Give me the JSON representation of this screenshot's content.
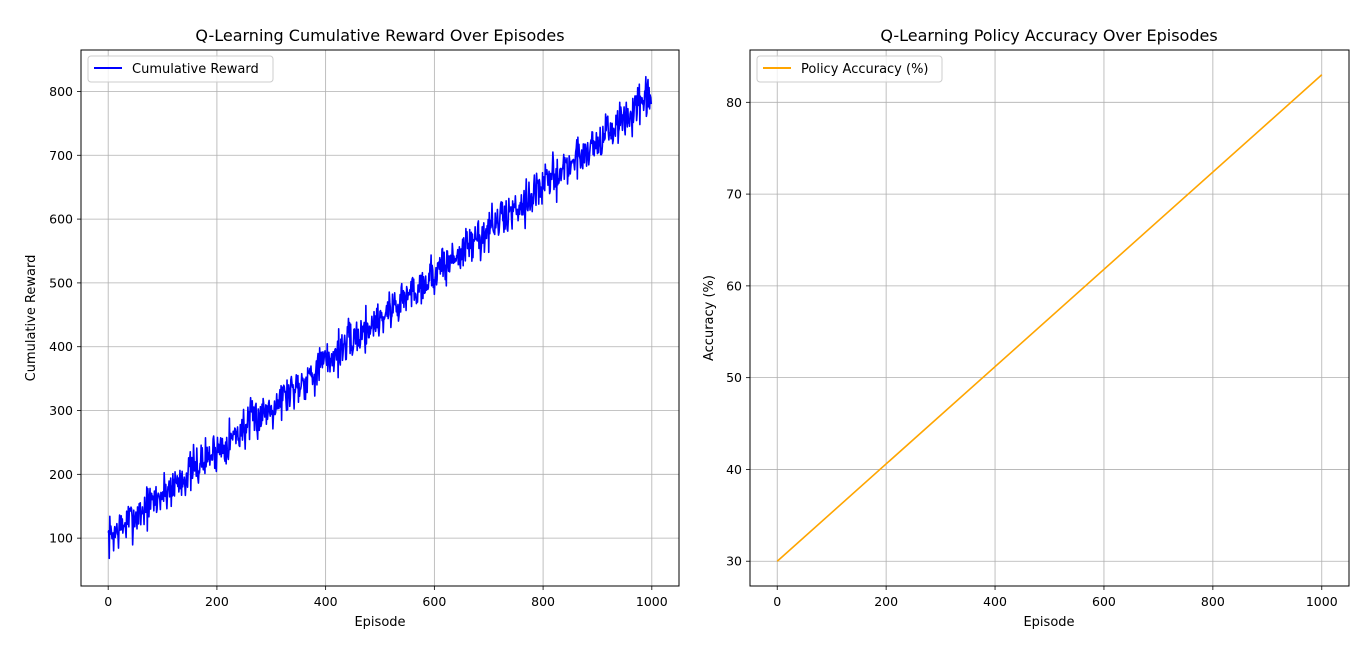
{
  "chart_data": [
    {
      "type": "line",
      "title": "Q-Learning Cumulative Reward Over Episodes",
      "xlabel": "Episode",
      "ylabel": "Cumulative Reward",
      "xlim": [
        -50,
        1050
      ],
      "ylim": [
        25,
        865
      ],
      "xticks": [
        0,
        200,
        400,
        600,
        800,
        1000
      ],
      "yticks": [
        100,
        200,
        300,
        400,
        500,
        600,
        700,
        800
      ],
      "grid": true,
      "legend": "upper-left",
      "series": [
        {
          "name": "Cumulative Reward",
          "color": "#0000ff",
          "x_start": 0,
          "x_step": 1,
          "noise_seed": 7,
          "points": 1000,
          "trend": {
            "start": 100,
            "end": 790
          },
          "noise_amplitude": 25,
          "note_values": "noisy series rising approximately linearly from about 100 at episode 0 to about 790 at episode 999"
        }
      ]
    },
    {
      "type": "line",
      "title": "Q-Learning Policy Accuracy Over Episodes",
      "xlabel": "Episode",
      "ylabel": "Accuracy (%)",
      "xlim": [
        -50,
        1050
      ],
      "ylim": [
        27.3,
        85.7
      ],
      "xticks": [
        0,
        200,
        400,
        600,
        800,
        1000
      ],
      "yticks": [
        30,
        40,
        50,
        60,
        70,
        80
      ],
      "grid": true,
      "legend": "upper-left",
      "series": [
        {
          "name": "Policy Accuracy (%)",
          "color": "#ffa500",
          "x": [
            0,
            1000
          ],
          "values": [
            30,
            83
          ]
        }
      ]
    }
  ]
}
